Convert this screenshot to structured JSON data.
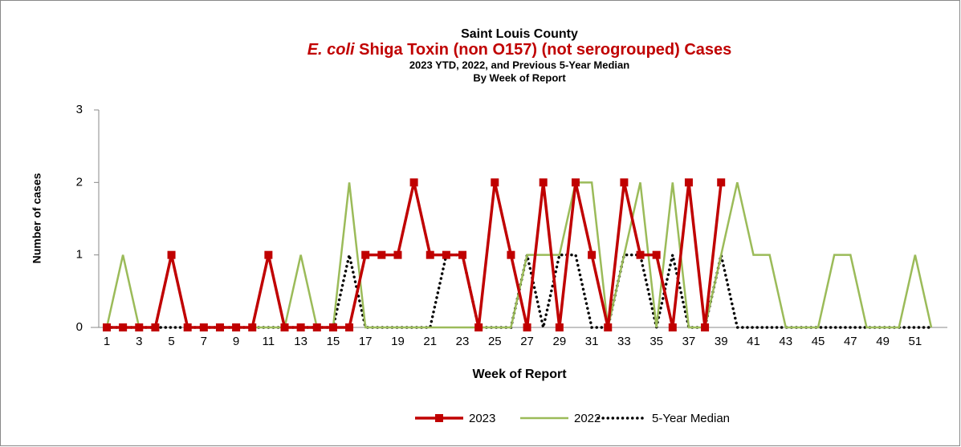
{
  "chart_data": {
    "type": "line",
    "title_top": "Saint Louis County",
    "title_em": "E. coli",
    "title": "Shiga Toxin (non O157) (not serogrouped) Cases",
    "subtitle": "2023 YTD, 2022, and Previous 5-Year Median",
    "subtitle2": "By Week of Report",
    "x_label": "Week of Report",
    "y_label": "Number of cases",
    "categories": [
      1,
      null,
      3,
      null,
      5,
      null,
      7,
      null,
      9,
      null,
      11,
      null,
      13,
      null,
      15,
      null,
      17,
      null,
      19,
      null,
      21,
      null,
      23,
      null,
      25,
      null,
      27,
      null,
      29,
      null,
      31,
      null,
      33,
      null,
      35,
      null,
      37,
      null,
      39,
      null,
      41,
      null,
      43,
      null,
      45,
      null,
      47,
      null,
      49,
      null,
      51,
      null
    ],
    "ylim": [
      0,
      3
    ],
    "yticks": [
      0,
      1,
      2,
      3
    ],
    "grid": false,
    "legend": "bottom",
    "series": [
      {
        "name": "2023",
        "color": "#c00000",
        "style": "solid-marker",
        "values": [
          0,
          0,
          0,
          0,
          1,
          0,
          0,
          0,
          0,
          0,
          1,
          0,
          0,
          0,
          0,
          0,
          1,
          1,
          1,
          2,
          1,
          1,
          1,
          0,
          2,
          1,
          0,
          2,
          0,
          2,
          1,
          0,
          2,
          1,
          1,
          0,
          2,
          0,
          2,
          null,
          null,
          null,
          null,
          null,
          null,
          null,
          null,
          null,
          null,
          null,
          null,
          null
        ]
      },
      {
        "name": "2022",
        "color": "#9bbb59",
        "style": "solid",
        "values": [
          0,
          1,
          0,
          0,
          1,
          0,
          0,
          0,
          0,
          0,
          0,
          0,
          1,
          0,
          0,
          2,
          0,
          0,
          0,
          0,
          0,
          0,
          0,
          0,
          0,
          0,
          1,
          1,
          1,
          2,
          2,
          0,
          1,
          2,
          0,
          2,
          0,
          0,
          1,
          2,
          1,
          1,
          0,
          0,
          0,
          1,
          1,
          0,
          0,
          0,
          1,
          0
        ]
      },
      {
        "name": "5-Year Median",
        "color": "#000000",
        "style": "dotted",
        "values": [
          0,
          0,
          0,
          0,
          0,
          0,
          0,
          0,
          0,
          0,
          0,
          0,
          0,
          0,
          0,
          1,
          0,
          0,
          0,
          0,
          0,
          1,
          1,
          0,
          0,
          0,
          1,
          0,
          1,
          1,
          0,
          0,
          1,
          1,
          0,
          1,
          0,
          0,
          1,
          0,
          0,
          0,
          0,
          0,
          0,
          0,
          0,
          0,
          0,
          0,
          0,
          0
        ]
      }
    ]
  }
}
